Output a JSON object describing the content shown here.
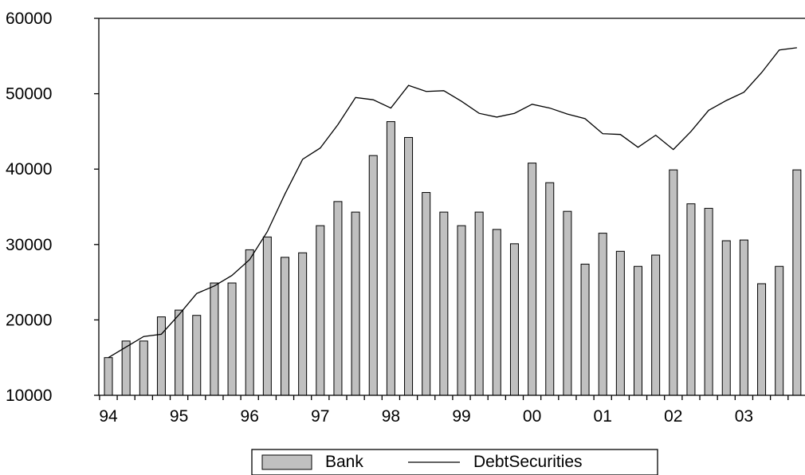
{
  "chart_data": {
    "type": "bar",
    "x_tick_labels": [
      "94",
      "95",
      "96",
      "97",
      "98",
      "99",
      "00",
      "01",
      "02",
      "03"
    ],
    "y_ticks": [
      10000,
      20000,
      30000,
      40000,
      50000,
      60000
    ],
    "y_tick_labels": [
      "10000",
      "20000",
      "30000",
      "40000",
      "50000",
      "60000"
    ],
    "ylim": [
      10000,
      60000
    ],
    "grid": false,
    "legend_position": "bottom-center",
    "series": [
      {
        "name": "Bank",
        "type": "bar",
        "color": "#c0c0c0",
        "values": [
          15000,
          17200,
          17200,
          20400,
          21300,
          20600,
          24900,
          24900,
          29300,
          31000,
          28300,
          28900,
          32500,
          35700,
          34300,
          41800,
          46300,
          44200,
          36900,
          34300,
          32500,
          34300,
          32000,
          30100,
          40800,
          38200,
          34400,
          27400,
          31500,
          29100,
          27100,
          28600,
          39900,
          35400,
          34800,
          30500,
          30600,
          24800,
          27100,
          39900
        ]
      },
      {
        "name": "DebtSecurities",
        "type": "line",
        "color": "#000000",
        "values": [
          15000,
          16400,
          17800,
          18100,
          20700,
          23500,
          24500,
          25900,
          28000,
          31700,
          36700,
          41300,
          42800,
          45900,
          49500,
          49200,
          48100,
          51100,
          50300,
          50400,
          49000,
          47400,
          46900,
          47400,
          48600,
          48100,
          47300,
          46700,
          44700,
          44600,
          42900,
          44500,
          42600,
          45000,
          47800,
          49100,
          50200,
          52800,
          55800,
          56100
        ]
      }
    ]
  }
}
